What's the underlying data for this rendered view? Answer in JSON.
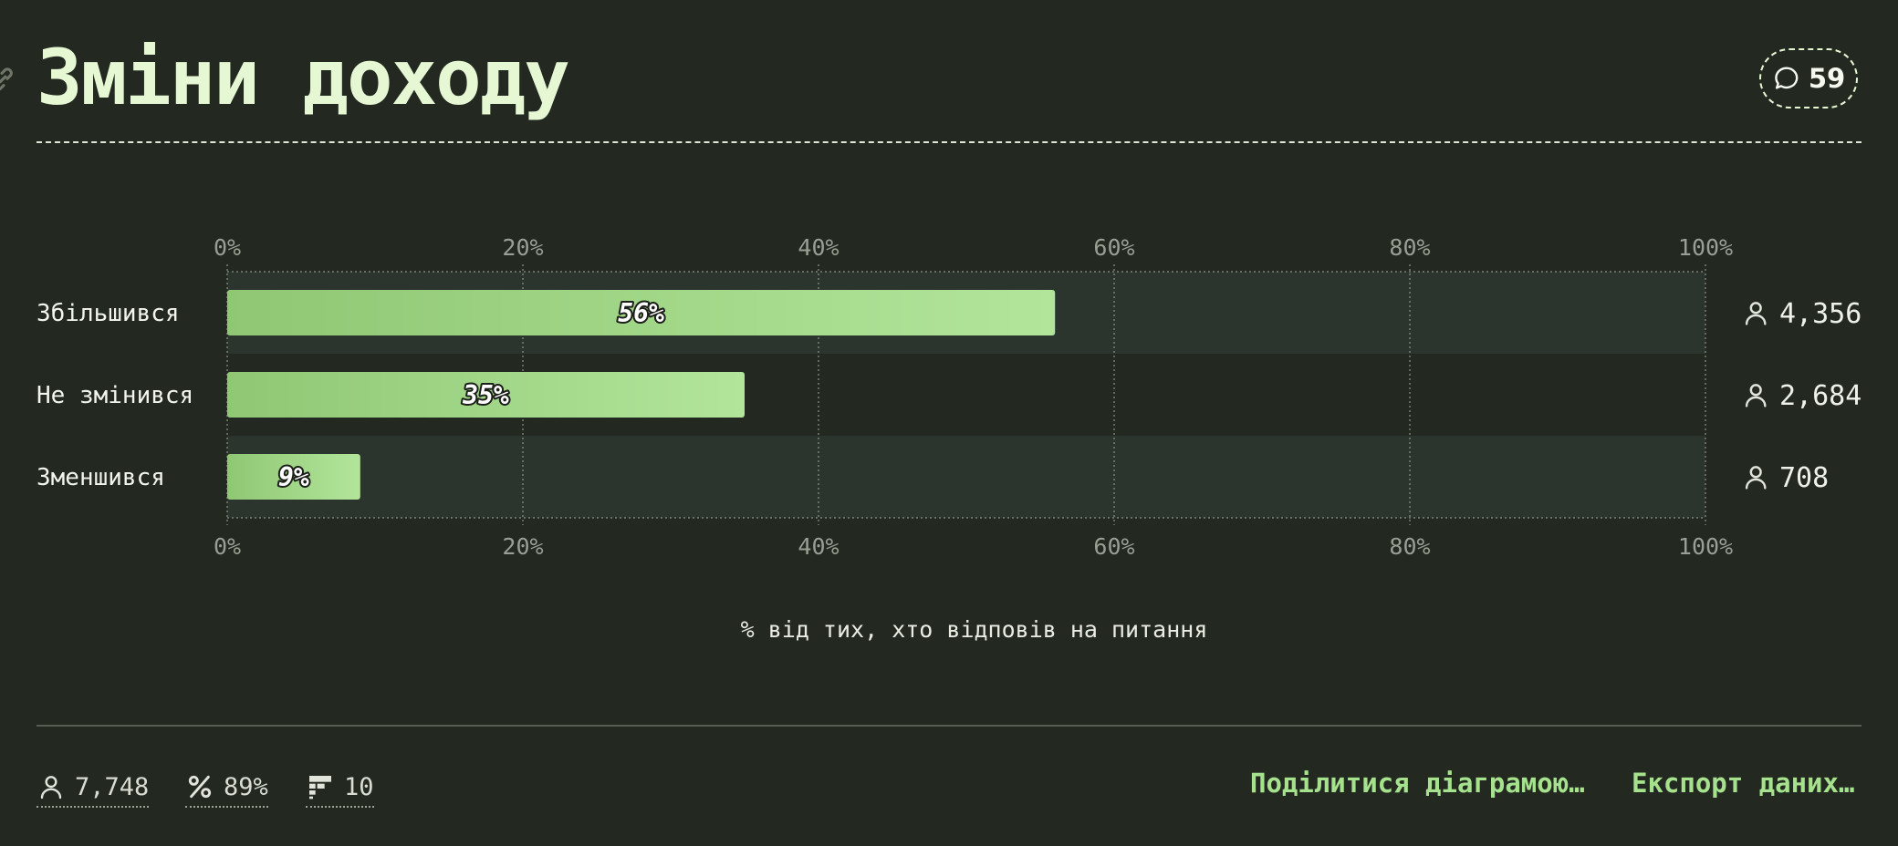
{
  "header": {
    "title": "Зміни доходу",
    "comment_count": "59"
  },
  "chart_data": {
    "type": "bar",
    "orientation": "horizontal",
    "categories": [
      "Збільшився",
      "Не змінився",
      "Зменшився"
    ],
    "values": [
      56,
      35,
      9
    ],
    "value_labels": [
      "56%",
      "35%",
      "9%"
    ],
    "counts": [
      "4,356",
      "2,684",
      "708"
    ],
    "xticks": [
      "0%",
      "20%",
      "40%",
      "60%",
      "80%",
      "100%"
    ],
    "xlim": [
      0,
      100
    ],
    "xlabel": "% від тих, хто відповів на питання",
    "grid": true,
    "colors": {
      "bar_start": "#8fc774",
      "bar_end": "#b2e59a",
      "band": "#2b352d",
      "tick_text": "#9a9f95"
    }
  },
  "footer": {
    "respondents": "7,748",
    "response_rate": "89%",
    "questions": "10",
    "share_label": "Поділитися діаграмою…",
    "export_label": "Експорт даних…"
  },
  "icons": {
    "link": "link-icon",
    "comment": "comment-bubble-icon",
    "person": "person-icon",
    "percent": "percent-icon",
    "questions": "question-list-icon"
  }
}
